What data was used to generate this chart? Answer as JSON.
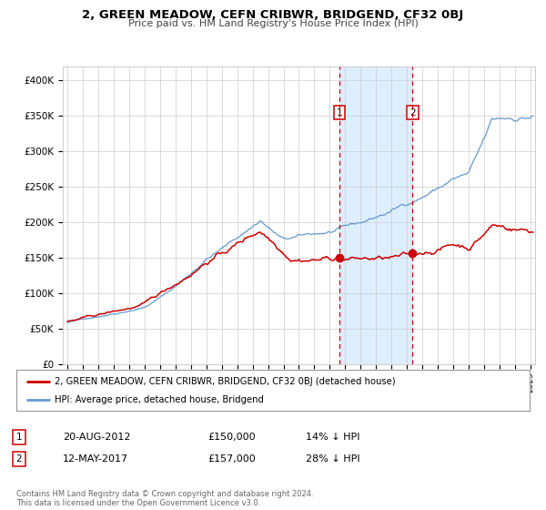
{
  "title": "2, GREEN MEADOW, CEFN CRIBWR, BRIDGEND, CF32 0BJ",
  "subtitle": "Price paid vs. HM Land Registry's House Price Index (HPI)",
  "legend_line1": "2, GREEN MEADOW, CEFN CRIBWR, BRIDGEND, CF32 0BJ (detached house)",
  "legend_line2": "HPI: Average price, detached house, Bridgend",
  "transaction1_date": "20-AUG-2012",
  "transaction1_price": "£150,000",
  "transaction1_hpi": "14% ↓ HPI",
  "transaction1_year": 2012.639,
  "transaction1_value": 150000,
  "transaction2_date": "12-MAY-2017",
  "transaction2_price": "£157,000",
  "transaction2_hpi": "28% ↓ HPI",
  "transaction2_year": 2017.364,
  "transaction2_value": 157000,
  "footer": "Contains HM Land Registry data © Crown copyright and database right 2024.\nThis data is licensed under the Open Government Licence v3.0.",
  "red_color": "#cc0000",
  "blue_color": "#6699cc",
  "shading_color": "#ddeeff",
  "grid_color": "#cccccc",
  "background_color": "#ffffff",
  "ylim": [
    0,
    420000
  ],
  "xlim_start": 1994.7,
  "xlim_end": 2025.3
}
